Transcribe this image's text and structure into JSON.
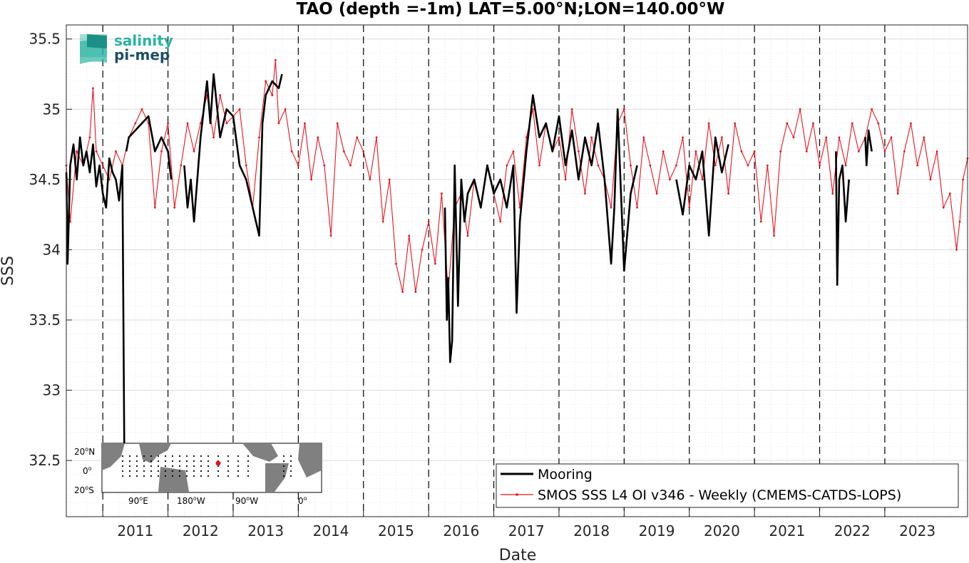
{
  "chart_data": {
    "type": "line",
    "title": "TAO (depth =-1m) LAT=5.00°N;LON=140.00°W",
    "xlabel": "Date",
    "ylabel": "SSS",
    "xlim": [
      2010.44,
      2024.27
    ],
    "ylim": [
      32.1,
      35.6
    ],
    "yticks": [
      "32.5",
      "33",
      "33.5",
      "34",
      "34.5",
      "35",
      "35.5"
    ],
    "xticks": [
      "2011",
      "2012",
      "2013",
      "2014",
      "2015",
      "2016",
      "2017",
      "2018",
      "2019",
      "2020",
      "2021",
      "2022",
      "2023"
    ],
    "year_boundaries": [
      2011,
      2012,
      2013,
      2014,
      2015,
      2016,
      2017,
      2018,
      2019,
      2020,
      2021,
      2022,
      2023
    ],
    "grid": true,
    "legend_position": "bottom-right",
    "series": [
      {
        "name": "Mooring",
        "color": "#000000",
        "x": [
          2010.44,
          2010.46,
          2010.5,
          2010.55,
          2010.6,
          2010.65,
          2010.7,
          2010.75,
          2010.8,
          2010.85,
          2010.9,
          2010.95,
          2011.0,
          2011.05,
          2011.1,
          2011.15,
          2011.2,
          2011.25,
          2011.3,
          2011.33,
          2011.34,
          2011.36,
          2011.4,
          2011.5,
          2011.6,
          2011.7,
          2011.8,
          2011.9,
          2012.0,
          2012.05
        ],
        "y": [
          34.55,
          33.9,
          34.6,
          34.75,
          34.5,
          34.8,
          34.6,
          34.7,
          34.55,
          34.75,
          34.45,
          34.6,
          34.4,
          34.3,
          34.65,
          34.55,
          34.5,
          34.35,
          34.6,
          32.6,
          null,
          34.7,
          34.8,
          34.85,
          34.9,
          34.95,
          34.7,
          34.8,
          34.7,
          34.5
        ],
        "segments": [
          {
            "x": [
              2010.44,
              2010.46,
              2010.5,
              2010.55,
              2010.6,
              2010.65,
              2010.7,
              2010.75,
              2010.8,
              2010.85,
              2010.9,
              2010.95,
              2011.0,
              2011.05,
              2011.1,
              2011.15,
              2011.2,
              2011.25,
              2011.3,
              2011.33
            ],
            "y": [
              34.55,
              33.9,
              34.6,
              34.75,
              34.5,
              34.8,
              34.6,
              34.7,
              34.55,
              34.75,
              34.45,
              34.6,
              34.4,
              34.3,
              34.65,
              34.55,
              34.5,
              34.35,
              34.6,
              32.6
            ]
          },
          {
            "x": [
              2011.36,
              2011.4,
              2011.5,
              2011.6,
              2011.7,
              2011.8,
              2011.9,
              2012.0,
              2012.05
            ],
            "y": [
              34.7,
              34.8,
              34.85,
              34.9,
              34.95,
              34.7,
              34.8,
              34.7,
              34.5
            ]
          },
          {
            "x": [
              2012.25,
              2012.3,
              2012.35,
              2012.4,
              2012.5,
              2012.55,
              2012.6,
              2012.65,
              2012.7,
              2012.8,
              2012.9,
              2013.0,
              2013.1,
              2013.2,
              2013.3,
              2013.4,
              2013.45,
              2013.5,
              2013.6,
              2013.7,
              2013.75
            ],
            "y": [
              34.6,
              34.3,
              34.5,
              34.2,
              34.8,
              35.0,
              35.2,
              34.9,
              35.25,
              34.8,
              35.0,
              34.95,
              34.6,
              34.5,
              34.3,
              34.1,
              34.9,
              35.1,
              35.2,
              35.15,
              35.25
            ]
          },
          {
            "x": [
              2016.25,
              2016.28,
              2016.3,
              2016.33,
              2016.36,
              2016.4,
              2016.45,
              2016.5,
              2016.55,
              2016.6,
              2016.7,
              2016.8,
              2016.9,
              2017.0,
              2017.1,
              2017.2,
              2017.3,
              2017.35,
              2017.4,
              2017.5,
              2017.6,
              2017.7,
              2017.8,
              2017.9,
              2018.0,
              2018.1,
              2018.2,
              2018.3,
              2018.4,
              2018.5,
              2018.6,
              2018.7,
              2018.8,
              2018.85,
              2018.9,
              2019.0,
              2019.1,
              2019.2
            ],
            "y": [
              34.3,
              33.5,
              33.8,
              33.2,
              33.35,
              34.6,
              33.6,
              34.5,
              34.2,
              34.4,
              34.5,
              34.3,
              34.6,
              34.4,
              34.5,
              34.3,
              34.6,
              33.55,
              34.2,
              34.7,
              35.1,
              34.8,
              34.9,
              34.7,
              34.95,
              34.6,
              34.85,
              34.5,
              34.8,
              34.6,
              34.9,
              34.5,
              33.9,
              34.3,
              35.0,
              33.85,
              34.4,
              34.6
            ]
          },
          {
            "x": [
              2019.8,
              2019.9,
              2020.0,
              2020.1,
              2020.2,
              2020.3,
              2020.4,
              2020.5,
              2020.6
            ],
            "y": [
              34.5,
              34.25,
              34.6,
              34.5,
              34.7,
              34.1,
              34.8,
              34.55,
              34.75
            ]
          },
          {
            "x": [
              2022.25,
              2022.27,
              2022.3,
              2022.35,
              2022.4,
              2022.45
            ],
            "y": [
              34.7,
              33.75,
              34.5,
              34.6,
              34.2,
              34.5
            ]
          },
          {
            "x": [
              2022.7,
              2022.72,
              2022.75,
              2022.8
            ],
            "y": [
              34.8,
              34.6,
              34.85,
              34.7
            ]
          }
        ]
      },
      {
        "name": "SMOS SSS L4 OI v346 - Weekly (CMEMS-CATDS-LOPS)",
        "color": "#e8141e",
        "x": [
          2010.44,
          2010.5,
          2010.6,
          2010.7,
          2010.8,
          2010.85,
          2010.9,
          2011.0,
          2011.1,
          2011.2,
          2011.3,
          2011.4,
          2011.5,
          2011.6,
          2011.7,
          2011.8,
          2011.9,
          2012.0,
          2012.1,
          2012.2,
          2012.3,
          2012.4,
          2012.5,
          2012.6,
          2012.7,
          2012.8,
          2012.9,
          2013.0,
          2013.1,
          2013.2,
          2013.3,
          2013.4,
          2013.5,
          2013.6,
          2013.65,
          2013.7,
          2013.8,
          2013.9,
          2014.0,
          2014.1,
          2014.2,
          2014.3,
          2014.4,
          2014.5,
          2014.6,
          2014.7,
          2014.8,
          2014.9,
          2015.0,
          2015.1,
          2015.2,
          2015.3,
          2015.4,
          2015.5,
          2015.6,
          2015.7,
          2015.8,
          2015.9,
          2016.0,
          2016.1,
          2016.2,
          2016.3,
          2016.4,
          2016.5,
          2016.6,
          2016.7,
          2016.8,
          2016.9,
          2017.0,
          2017.1,
          2017.2,
          2017.3,
          2017.4,
          2017.5,
          2017.6,
          2017.7,
          2017.8,
          2017.9,
          2018.0,
          2018.1,
          2018.2,
          2018.3,
          2018.4,
          2018.5,
          2018.6,
          2018.7,
          2018.8,
          2018.9,
          2019.0,
          2019.1,
          2019.2,
          2019.3,
          2019.4,
          2019.5,
          2019.6,
          2019.7,
          2019.8,
          2019.9,
          2020.0,
          2020.1,
          2020.2,
          2020.3,
          2020.4,
          2020.5,
          2020.6,
          2020.7,
          2020.8,
          2020.9,
          2021.0,
          2021.1,
          2021.2,
          2021.3,
          2021.4,
          2021.5,
          2021.6,
          2021.7,
          2021.8,
          2021.9,
          2022.0,
          2022.1,
          2022.2,
          2022.3,
          2022.4,
          2022.5,
          2022.6,
          2022.7,
          2022.8,
          2022.9,
          2023.0,
          2023.1,
          2023.2,
          2023.3,
          2023.4,
          2023.5,
          2023.6,
          2023.7,
          2023.8,
          2023.9,
          2024.0,
          2024.1,
          2024.15,
          2024.2,
          2024.27
        ],
        "y": [
          34.6,
          34.2,
          34.7,
          34.6,
          34.8,
          35.15,
          34.7,
          34.6,
          34.5,
          34.7,
          34.6,
          34.8,
          34.9,
          35.0,
          34.9,
          34.3,
          34.7,
          34.9,
          34.3,
          34.6,
          34.9,
          34.7,
          34.9,
          35.1,
          34.8,
          35.1,
          34.9,
          34.95,
          35.0,
          34.6,
          34.3,
          34.8,
          35.2,
          35.1,
          35.35,
          34.9,
          35.0,
          34.7,
          34.6,
          34.9,
          34.5,
          34.8,
          34.6,
          34.1,
          34.9,
          34.7,
          34.6,
          34.8,
          34.7,
          34.5,
          34.8,
          34.2,
          34.5,
          33.9,
          33.7,
          34.1,
          33.7,
          34.0,
          34.2,
          33.9,
          34.4,
          33.7,
          34.3,
          34.4,
          34.1,
          34.5,
          34.3,
          34.6,
          34.4,
          34.2,
          34.6,
          34.7,
          34.3,
          34.8,
          35.0,
          34.6,
          34.9,
          34.7,
          34.8,
          34.5,
          35.0,
          34.7,
          34.4,
          34.8,
          34.6,
          34.5,
          34.3,
          34.9,
          35.0,
          34.6,
          34.3,
          34.8,
          34.6,
          34.4,
          34.7,
          34.5,
          34.6,
          34.8,
          34.3,
          34.7,
          34.5,
          34.9,
          34.6,
          34.8,
          34.4,
          34.9,
          34.7,
          34.6,
          34.7,
          34.2,
          34.6,
          34.1,
          34.7,
          34.9,
          34.8,
          35.0,
          34.7,
          34.9,
          34.6,
          34.8,
          34.4,
          34.8,
          34.6,
          34.9,
          34.7,
          34.8,
          35.0,
          34.9,
          34.7,
          34.8,
          34.4,
          34.7,
          34.9,
          34.6,
          34.8,
          34.5,
          34.7,
          34.3,
          34.4,
          34.0,
          34.2,
          34.5,
          34.65
        ]
      }
    ]
  },
  "legend": {
    "mooring": "Mooring",
    "smos": "SMOS SSS L4 OI v346 - Weekly (CMEMS-CATDS-LOPS)"
  },
  "logo": {
    "line1": "salinity",
    "line2": "pi-mep"
  },
  "inset_map": {
    "lat_labels": [
      "20oN",
      "0o",
      "20oS"
    ],
    "lon_labels": [
      "90oE",
      "180oW",
      "90oW",
      "0o"
    ],
    "marker_color": "#e8141e",
    "land_color": "#808080"
  }
}
